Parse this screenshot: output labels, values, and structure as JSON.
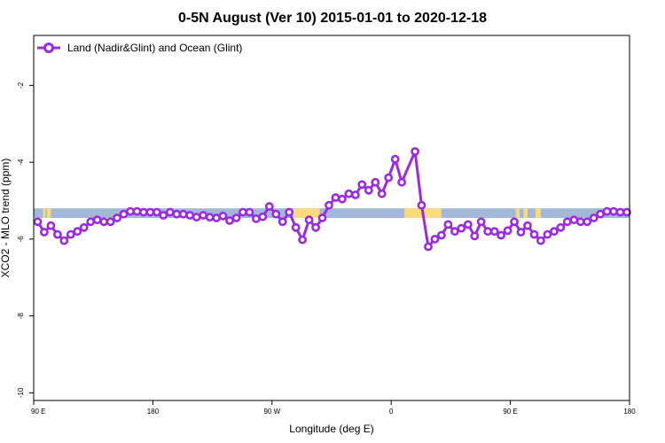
{
  "chart_data": {
    "type": "line",
    "title": "0-5N August (Ver 10)   2015-01-01 to 2020-12-18",
    "xlabel": "Longitude (deg E)",
    "ylabel": "XCO2 - MLO trend (ppm)",
    "xlim": [
      90,
      540
    ],
    "ylim": [
      -10.2,
      -0.7
    ],
    "x_ticks": [
      {
        "value": 90,
        "label": "90 E"
      },
      {
        "value": 180,
        "label": "180"
      },
      {
        "value": 270,
        "label": "90 W"
      },
      {
        "value": 360,
        "label": "0"
      },
      {
        "value": 450,
        "label": "90 E"
      },
      {
        "value": 540,
        "label": "180"
      }
    ],
    "y_ticks": [
      {
        "value": -2,
        "label": "-2"
      },
      {
        "value": -4,
        "label": "-4"
      },
      {
        "value": -6,
        "label": "-6"
      },
      {
        "value": -8,
        "label": "-8"
      },
      {
        "value": -10,
        "label": "-10"
      }
    ],
    "grid": false,
    "legend_position": "top-left",
    "land_ocean_band": {
      "y_range": [
        -5.45,
        -5.2
      ],
      "ocean_color": "#a3b8d8",
      "land_color": "#fbd97e",
      "land_segments": [
        [
          97,
          99
        ],
        [
          100,
          103
        ],
        [
          286,
          306
        ],
        [
          370,
          398
        ],
        [
          454,
          457
        ],
        [
          460,
          463
        ],
        [
          469,
          473
        ]
      ]
    },
    "series": [
      {
        "name": "Land (Nadir&Glint) and Ocean (Glint)",
        "color": "#9a2be2",
        "x": [
          93,
          98,
          103,
          108,
          113,
          118,
          123,
          128,
          133,
          138,
          143,
          148,
          153,
          158,
          163,
          168,
          173,
          178,
          183,
          188,
          193,
          198,
          203,
          208,
          213,
          218,
          223,
          228,
          233,
          238,
          243,
          248,
          253,
          258,
          263,
          268,
          273,
          278,
          283,
          288,
          293,
          298,
          303,
          308,
          313,
          318,
          323,
          328,
          333,
          338,
          343,
          348,
          353,
          358,
          363,
          368,
          378,
          383,
          388,
          393,
          398,
          403,
          408,
          413,
          418,
          423,
          428,
          433,
          438,
          443,
          448,
          453,
          458,
          463,
          468,
          473,
          478,
          483,
          488,
          493,
          498,
          503,
          508,
          513,
          518,
          523,
          528,
          533,
          538
        ],
        "y": [
          -5.55,
          -5.82,
          -5.65,
          -5.88,
          -6.04,
          -5.88,
          -5.8,
          -5.7,
          -5.55,
          -5.5,
          -5.55,
          -5.55,
          -5.45,
          -5.35,
          -5.28,
          -5.28,
          -5.3,
          -5.3,
          -5.3,
          -5.38,
          -5.3,
          -5.35,
          -5.35,
          -5.38,
          -5.43,
          -5.38,
          -5.43,
          -5.45,
          -5.4,
          -5.52,
          -5.45,
          -5.3,
          -5.3,
          -5.47,
          -5.42,
          -5.15,
          -5.35,
          -5.55,
          -5.3,
          -5.7,
          -6.02,
          -5.5,
          -5.7,
          -5.45,
          -5.12,
          -4.92,
          -4.96,
          -4.82,
          -4.85,
          -4.58,
          -4.73,
          -4.52,
          -4.82,
          -4.4,
          -3.92,
          -4.52,
          -3.72,
          -5.12,
          -6.2,
          -6.0,
          -5.9,
          -5.62,
          -5.8,
          -5.72,
          -5.62,
          -5.92,
          -5.55,
          -5.8,
          -5.8,
          -5.9,
          -5.78,
          -5.55,
          -5.82,
          -5.65,
          -5.88,
          -6.04,
          -5.88,
          -5.8,
          -5.7,
          -5.55,
          -5.5,
          -5.55,
          -5.55,
          -5.45,
          -5.35,
          -5.28,
          -5.28,
          -5.3,
          -5.3
        ]
      }
    ]
  }
}
